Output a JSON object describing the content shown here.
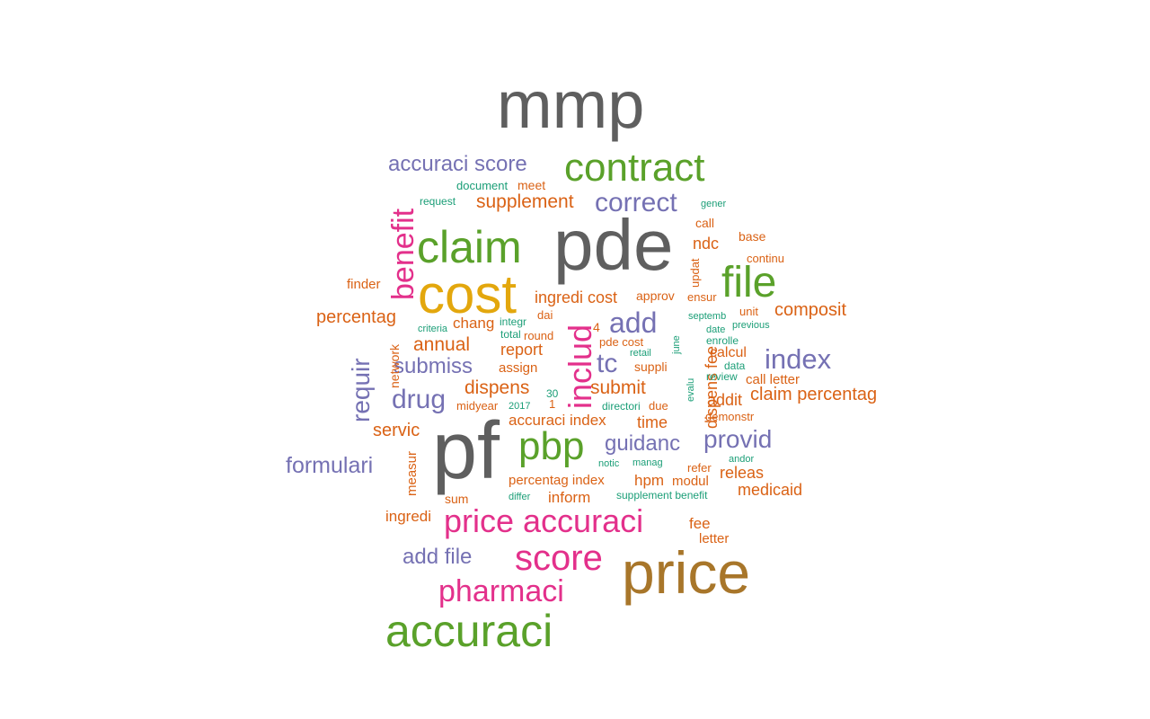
{
  "palette": {
    "gray": "#5f5f5f",
    "green": "#5aa12a",
    "purple": "#7571b3",
    "pink": "#e3308b",
    "orange": "#da6215",
    "teal": "#1b9e77",
    "gold": "#e3a70d",
    "brown": "#a8762a"
  },
  "words": [
    {
      "text": "mmp",
      "color": "gray"
    },
    {
      "text": "pde",
      "color": "gray"
    },
    {
      "text": "pf",
      "color": "gray"
    },
    {
      "text": "price",
      "color": "brown"
    },
    {
      "text": "cost",
      "color": "gold"
    },
    {
      "text": "contract",
      "color": "green"
    },
    {
      "text": "claim",
      "color": "green"
    },
    {
      "text": "file",
      "color": "green"
    },
    {
      "text": "pbp",
      "color": "green"
    },
    {
      "text": "accuraci",
      "color": "green"
    },
    {
      "text": "accuraci score",
      "color": "purple"
    },
    {
      "text": "correct",
      "color": "purple"
    },
    {
      "text": "add",
      "color": "purple"
    },
    {
      "text": "index",
      "color": "purple"
    },
    {
      "text": "tc",
      "color": "purple"
    },
    {
      "text": "submiss",
      "color": "purple"
    },
    {
      "text": "drug",
      "color": "purple"
    },
    {
      "text": "requir",
      "color": "purple"
    },
    {
      "text": "guidanc",
      "color": "purple"
    },
    {
      "text": "provid",
      "color": "purple"
    },
    {
      "text": "formulari",
      "color": "purple"
    },
    {
      "text": "add file",
      "color": "purple"
    },
    {
      "text": "benefit",
      "color": "pink"
    },
    {
      "text": "includ",
      "color": "pink"
    },
    {
      "text": "price accuraci",
      "color": "pink"
    },
    {
      "text": "score",
      "color": "pink"
    },
    {
      "text": "pharmaci",
      "color": "pink"
    },
    {
      "text": "supplement",
      "color": "orange"
    },
    {
      "text": "meet",
      "color": "orange"
    },
    {
      "text": "call",
      "color": "orange"
    },
    {
      "text": "ndc",
      "color": "orange"
    },
    {
      "text": "base",
      "color": "orange"
    },
    {
      "text": "continu",
      "color": "orange"
    },
    {
      "text": "updat",
      "color": "orange"
    },
    {
      "text": "finder",
      "color": "orange"
    },
    {
      "text": "ingredi cost",
      "color": "orange"
    },
    {
      "text": "approv",
      "color": "orange"
    },
    {
      "text": "ensur",
      "color": "orange"
    },
    {
      "text": "composit",
      "color": "orange"
    },
    {
      "text": "percentag",
      "color": "orange"
    },
    {
      "text": "chang",
      "color": "orange"
    },
    {
      "text": "dai",
      "color": "orange"
    },
    {
      "text": "unit",
      "color": "orange"
    },
    {
      "text": "annual",
      "color": "orange"
    },
    {
      "text": "round",
      "color": "orange"
    },
    {
      "text": "4",
      "color": "orange"
    },
    {
      "text": "pde cost",
      "color": "orange"
    },
    {
      "text": "report",
      "color": "orange"
    },
    {
      "text": "assign",
      "color": "orange"
    },
    {
      "text": "suppli",
      "color": "orange"
    },
    {
      "text": "dispens fee",
      "color": "orange"
    },
    {
      "text": "calcul",
      "color": "orange"
    },
    {
      "text": "call letter",
      "color": "orange"
    },
    {
      "text": "dispens",
      "color": "orange"
    },
    {
      "text": "submit",
      "color": "orange"
    },
    {
      "text": "addit",
      "color": "orange"
    },
    {
      "text": "claim percentag",
      "color": "orange"
    },
    {
      "text": "network",
      "color": "orange"
    },
    {
      "text": "midyear",
      "color": "orange"
    },
    {
      "text": "1",
      "color": "orange"
    },
    {
      "text": "due",
      "color": "orange"
    },
    {
      "text": "accuraci index",
      "color": "orange"
    },
    {
      "text": "time",
      "color": "orange"
    },
    {
      "text": "demonstr",
      "color": "orange"
    },
    {
      "text": "servic",
      "color": "orange"
    },
    {
      "text": "measur",
      "color": "orange"
    },
    {
      "text": "refer",
      "color": "orange"
    },
    {
      "text": "releas",
      "color": "orange"
    },
    {
      "text": "percentag index",
      "color": "orange"
    },
    {
      "text": "hpm",
      "color": "orange"
    },
    {
      "text": "modul",
      "color": "orange"
    },
    {
      "text": "medicaid",
      "color": "orange"
    },
    {
      "text": "sum",
      "color": "orange"
    },
    {
      "text": "inform",
      "color": "orange"
    },
    {
      "text": "ingredi",
      "color": "orange"
    },
    {
      "text": "fee",
      "color": "orange"
    },
    {
      "text": "letter",
      "color": "orange"
    },
    {
      "text": "document",
      "color": "teal"
    },
    {
      "text": "request",
      "color": "teal"
    },
    {
      "text": "gener",
      "color": "teal"
    },
    {
      "text": "integr",
      "color": "teal"
    },
    {
      "text": "criteria",
      "color": "teal"
    },
    {
      "text": "total",
      "color": "teal"
    },
    {
      "text": "septemb",
      "color": "teal"
    },
    {
      "text": "previous",
      "color": "teal"
    },
    {
      "text": "date",
      "color": "teal"
    },
    {
      "text": "enrolle",
      "color": "teal"
    },
    {
      "text": "june",
      "color": "teal"
    },
    {
      "text": "retail",
      "color": "teal"
    },
    {
      "text": "data",
      "color": "teal"
    },
    {
      "text": "review",
      "color": "teal"
    },
    {
      "text": "evalu",
      "color": "teal"
    },
    {
      "text": "30",
      "color": "teal"
    },
    {
      "text": "2017",
      "color": "teal"
    },
    {
      "text": "directori",
      "color": "teal"
    },
    {
      "text": "notic",
      "color": "teal"
    },
    {
      "text": "manag",
      "color": "teal"
    },
    {
      "text": "andor",
      "color": "teal"
    },
    {
      "text": "supplement benefit",
      "color": "teal"
    },
    {
      "text": "differ",
      "color": "teal"
    }
  ]
}
